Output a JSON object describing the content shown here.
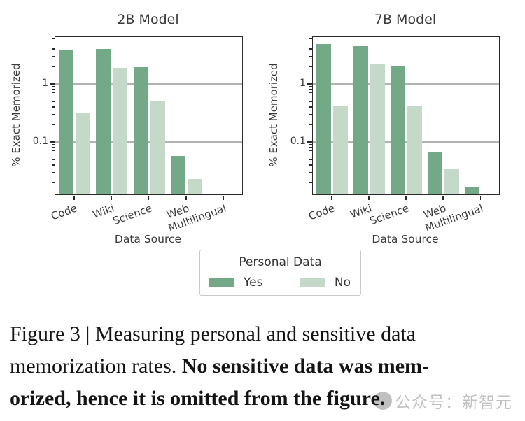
{
  "chart_data": [
    {
      "type": "bar",
      "title": "2B Model",
      "xlabel": "Data Source",
      "ylabel": "% Exact Memorized",
      "yscale": "log",
      "ylim": [
        0.0125,
        6.4
      ],
      "yticks": [
        1,
        0.1
      ],
      "ytick_labels": [
        "1",
        "0.1"
      ],
      "grid": "horizontal-major",
      "legend_position": "below-figure",
      "categories": [
        "Code",
        "Wiki",
        "Science",
        "Web",
        "Multilingual"
      ],
      "series": [
        {
          "name": "Yes",
          "color": "#74a987",
          "values": [
            3.9,
            4.0,
            1.95,
            0.058,
            null
          ]
        },
        {
          "name": "No",
          "color": "#c4d9c8",
          "values": [
            0.32,
            1.9,
            0.51,
            0.023,
            null
          ]
        }
      ]
    },
    {
      "type": "bar",
      "title": "7B Model",
      "xlabel": "Data Source",
      "ylabel": "% Exact Memorized",
      "yscale": "log",
      "ylim": [
        0.0125,
        6.4
      ],
      "yticks": [
        1,
        0.1
      ],
      "ytick_labels": [
        "1",
        "0.1"
      ],
      "grid": "horizontal-major",
      "legend_position": "below-figure",
      "categories": [
        "Code",
        "Wiki",
        "Science",
        "Web",
        "Multilingual"
      ],
      "series": [
        {
          "name": "Yes",
          "color": "#74a987",
          "values": [
            4.9,
            4.5,
            2.05,
            0.068,
            0.017
          ]
        },
        {
          "name": "No",
          "color": "#c4d9c8",
          "values": [
            0.42,
            2.2,
            0.41,
            0.035,
            null
          ]
        }
      ]
    }
  ],
  "legend": {
    "title": "Personal Data",
    "items": [
      {
        "label": "Yes",
        "color": "#74a987"
      },
      {
        "label": "No",
        "color": "#c4d9c8"
      }
    ]
  },
  "caption": {
    "lines": [
      [
        {
          "text": "Figure 3 | Measuring personal and sensitive data",
          "bold": false
        }
      ],
      [
        {
          "text": "memorization rates. ",
          "bold": false
        },
        {
          "text": "No sensitive data was mem-",
          "bold": true
        }
      ],
      [
        {
          "text": "orized, hence it is omitted from the figure.",
          "bold": true
        }
      ]
    ]
  },
  "watermark": {
    "text": "公众号：新智元"
  },
  "colors": {
    "bar_yes": "#74a987",
    "bar_no": "#c4d9c8",
    "grid": "#b3b3b3",
    "spine": "#2a2a2a",
    "text": "#3a3a3a"
  }
}
